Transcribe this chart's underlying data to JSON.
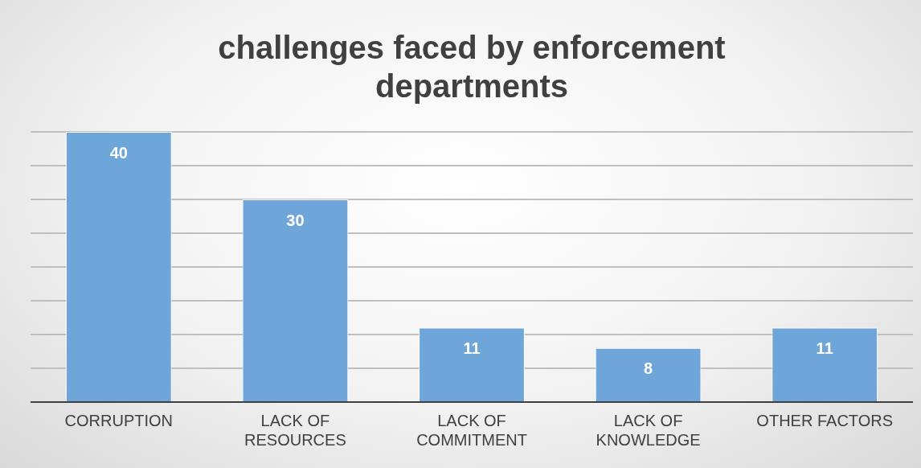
{
  "chart_data": {
    "type": "bar",
    "title": "challenges faced by enforcement departments",
    "categories": [
      "CORRUPTION",
      "LACK OF RESOURCES",
      "LACK OF COMMITMENT",
      "LACK OF KNOWLEDGE",
      "OTHER FACTORS"
    ],
    "values": [
      40,
      30,
      11,
      8,
      11
    ],
    "color": "#6ea6da",
    "grid": "y",
    "tick_labels": "x",
    "data_labels": true
  }
}
